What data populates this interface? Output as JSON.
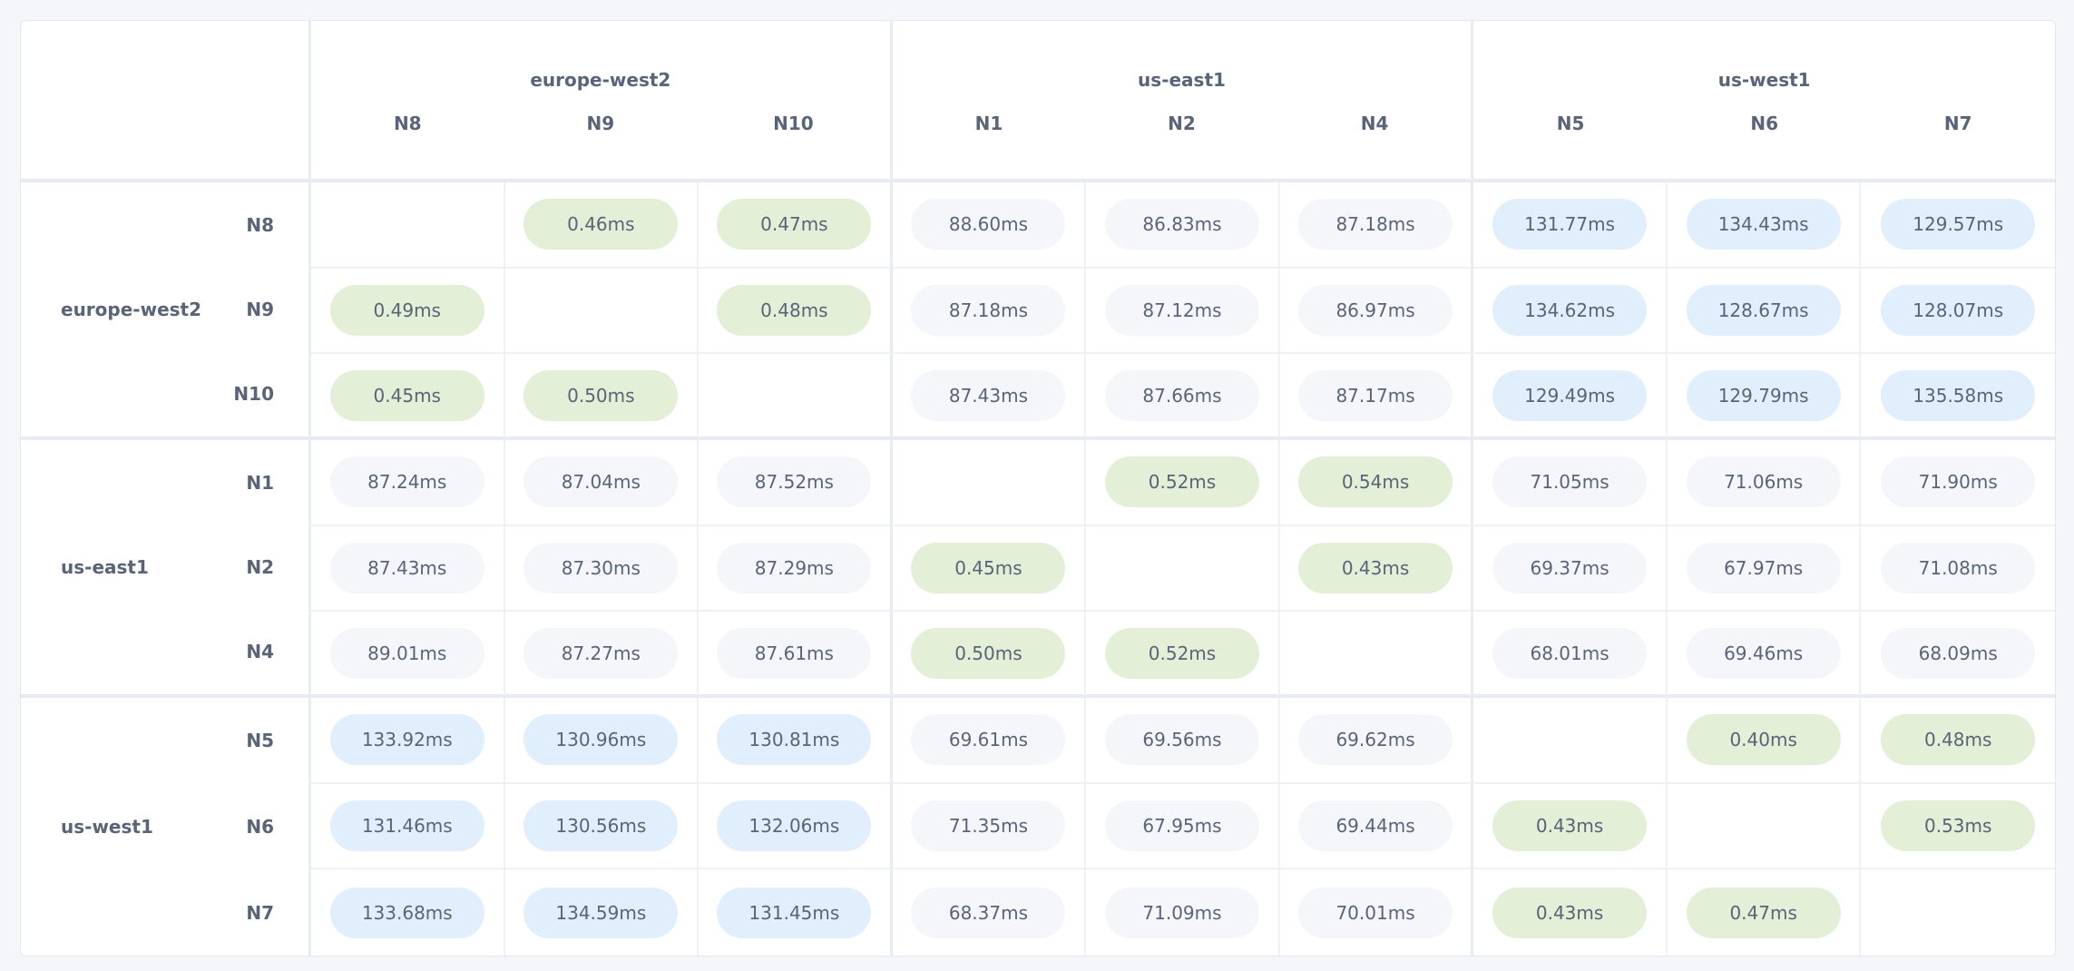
{
  "colors": {
    "same_region": "#e3efd6",
    "far": "#e1effc",
    "near": "#f4f6fa",
    "text": "#5a6478"
  },
  "regions": [
    {
      "name": "europe-west2",
      "nodes": [
        "N8",
        "N9",
        "N10"
      ]
    },
    {
      "name": "us-east1",
      "nodes": [
        "N1",
        "N2",
        "N4"
      ]
    },
    {
      "name": "us-west1",
      "nodes": [
        "N5",
        "N6",
        "N7"
      ]
    }
  ],
  "matrix": [
    [
      "",
      "0.46ms",
      "0.47ms",
      "88.60ms",
      "86.83ms",
      "87.18ms",
      "131.77ms",
      "134.43ms",
      "129.57ms"
    ],
    [
      "0.49ms",
      "",
      "0.48ms",
      "87.18ms",
      "87.12ms",
      "86.97ms",
      "134.62ms",
      "128.67ms",
      "128.07ms"
    ],
    [
      "0.45ms",
      "0.50ms",
      "",
      "87.43ms",
      "87.66ms",
      "87.17ms",
      "129.49ms",
      "129.79ms",
      "135.58ms"
    ],
    [
      "87.24ms",
      "87.04ms",
      "87.52ms",
      "",
      "0.52ms",
      "0.54ms",
      "71.05ms",
      "71.06ms",
      "71.90ms"
    ],
    [
      "87.43ms",
      "87.30ms",
      "87.29ms",
      "0.45ms",
      "",
      "0.43ms",
      "69.37ms",
      "67.97ms",
      "71.08ms"
    ],
    [
      "89.01ms",
      "87.27ms",
      "87.61ms",
      "0.50ms",
      "0.52ms",
      "",
      "68.01ms",
      "69.46ms",
      "68.09ms"
    ],
    [
      "133.92ms",
      "130.96ms",
      "130.81ms",
      "69.61ms",
      "69.56ms",
      "69.62ms",
      "",
      "0.40ms",
      "0.48ms"
    ],
    [
      "131.46ms",
      "130.56ms",
      "132.06ms",
      "71.35ms",
      "67.95ms",
      "69.44ms",
      "0.43ms",
      "",
      "0.53ms"
    ],
    [
      "133.68ms",
      "134.59ms",
      "131.45ms",
      "68.37ms",
      "71.09ms",
      "70.01ms",
      "0.43ms",
      "0.47ms",
      ""
    ]
  ]
}
